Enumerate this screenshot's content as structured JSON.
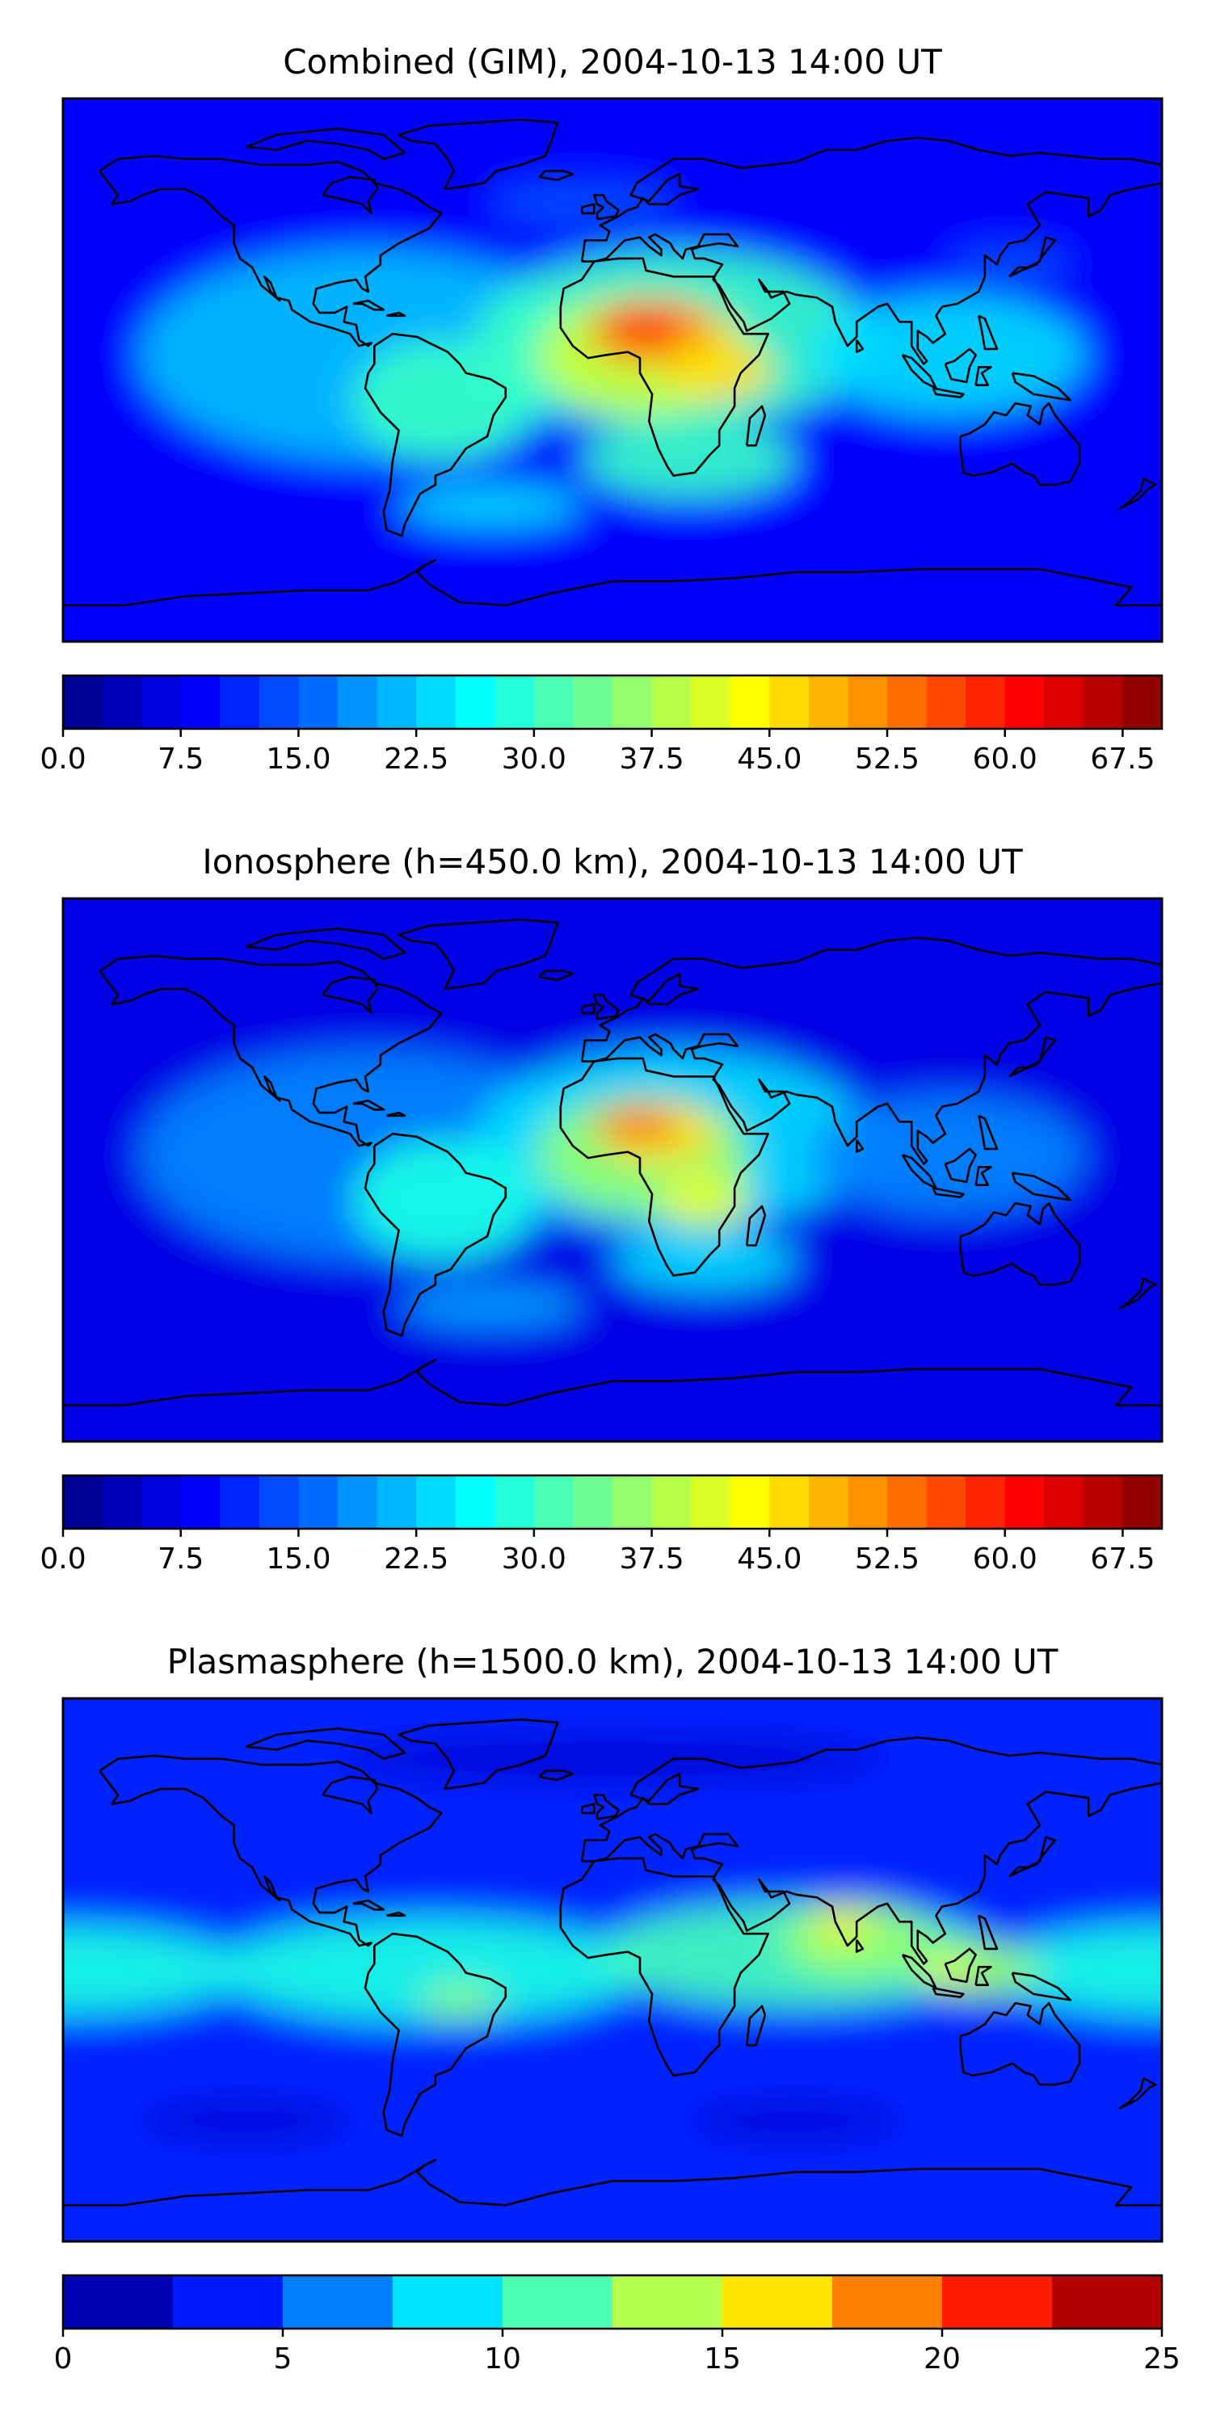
{
  "panels": [
    {
      "title": "Combined (GIM), 2004-10-13 14:00 UT",
      "kind": "combined",
      "cmax": 70,
      "colorbar": {
        "levels": 28,
        "min": 0,
        "max": 70,
        "ticks": [
          "0.0",
          "7.5",
          "15.0",
          "22.5",
          "30.0",
          "37.5",
          "45.0",
          "52.5",
          "60.0",
          "67.5"
        ],
        "tick_values": [
          0,
          7.5,
          15,
          22.5,
          30,
          37.5,
          45,
          52.5,
          60,
          67.5
        ]
      }
    },
    {
      "title": "Ionosphere  (h=450.0 km), 2004-10-13 14:00 UT",
      "kind": "ionosphere",
      "cmax": 70,
      "colorbar": {
        "levels": 28,
        "min": 0,
        "max": 70,
        "ticks": [
          "0.0",
          "7.5",
          "15.0",
          "22.5",
          "30.0",
          "37.5",
          "45.0",
          "52.5",
          "60.0",
          "67.5"
        ],
        "tick_values": [
          0,
          7.5,
          15,
          22.5,
          30,
          37.5,
          45,
          52.5,
          60,
          67.5
        ]
      }
    },
    {
      "title": "Plasmasphere (h=1500.0 km), 2004-10-13 14:00 UT",
      "kind": "plasmasphere",
      "cmax": 25,
      "colorbar": {
        "levels": 10,
        "min": 0,
        "max": 25,
        "ticks": [
          "0",
          "5",
          "10",
          "15",
          "20",
          "25"
        ],
        "tick_values": [
          0,
          5,
          10,
          15,
          20,
          25
        ]
      }
    }
  ],
  "colors": {
    "coastline": "#000000",
    "frame": "#000000",
    "background": "#ffffff"
  }
}
